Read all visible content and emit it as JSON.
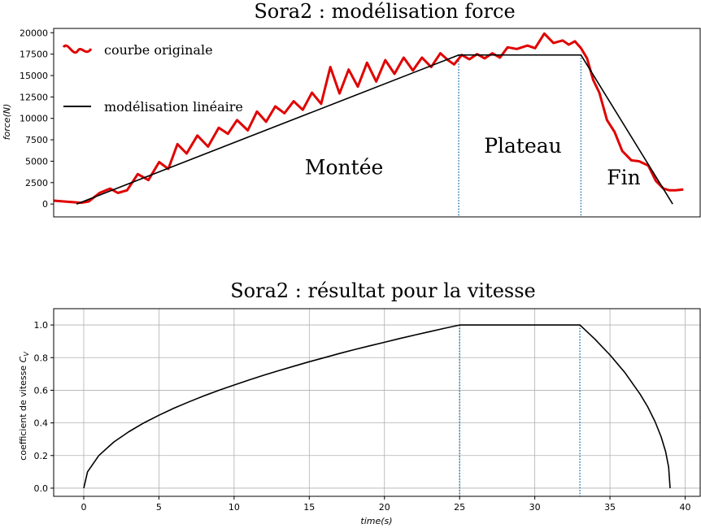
{
  "chart_data": [
    {
      "type": "line",
      "title": "Sora2 : modélisation force",
      "xlabel": "",
      "ylabel": "force(N)",
      "xlim": [
        -1.5,
        40.8
      ],
      "ylim": [
        -1500,
        20500
      ],
      "xticks": [],
      "yticks": [
        0,
        2500,
        5000,
        7500,
        10000,
        12500,
        15000,
        17500,
        20000
      ],
      "ytick_labels": [
        "0",
        "2500",
        "5000",
        "7500",
        "10000",
        "12500",
        "15000",
        "17500",
        "20000"
      ],
      "grid": false,
      "legend_position": "top-left",
      "series": [
        {
          "name": "courbe originale",
          "color": "#e00000",
          "x": [
            -1.5,
            -0.5,
            0.3,
            0.8,
            1.5,
            2.2,
            2.7,
            3.3,
            4.0,
            4.7,
            5.4,
            6.0,
            6.6,
            7.2,
            7.9,
            8.6,
            9.3,
            9.9,
            10.5,
            11.2,
            11.8,
            12.4,
            13.0,
            13.6,
            14.2,
            14.8,
            15.4,
            16.0,
            16.6,
            17.2,
            17.8,
            18.4,
            19.0,
            19.6,
            20.2,
            20.8,
            21.4,
            22.0,
            22.6,
            23.2,
            23.8,
            24.3,
            24.7,
            25.2,
            25.7,
            26.2,
            26.7,
            27.2,
            27.7,
            28.2,
            28.8,
            29.5,
            30.0,
            30.6,
            31.2,
            31.8,
            32.2,
            32.6,
            33.0,
            33.4,
            33.8,
            34.2,
            34.7,
            35.2,
            35.7,
            36.3,
            36.8,
            37.4,
            37.9,
            38.4,
            38.8,
            39.2,
            39.7
          ],
          "values": [
            400,
            250,
            150,
            300,
            1300,
            1800,
            1300,
            1600,
            3500,
            2800,
            4900,
            4100,
            7000,
            5900,
            8000,
            6700,
            8900,
            8200,
            9800,
            8600,
            10800,
            9600,
            11400,
            10600,
            12000,
            11000,
            13000,
            11700,
            16000,
            12900,
            15700,
            13700,
            16500,
            14300,
            16800,
            15200,
            17100,
            15600,
            17100,
            16000,
            17600,
            16800,
            16300,
            17400,
            16900,
            17500,
            17000,
            17600,
            17100,
            18300,
            18100,
            18500,
            18200,
            19900,
            18800,
            19100,
            18600,
            19000,
            18200,
            17000,
            14500,
            13000,
            9800,
            8400,
            6200,
            5100,
            5000,
            4500,
            2700,
            1800,
            1600,
            1600,
            1700
          ]
        },
        {
          "name": "modélisation linéaire",
          "color": "#000000",
          "x": [
            0,
            25,
            33,
            39
          ],
          "values": [
            0,
            17400,
            17400,
            0
          ]
        }
      ],
      "vlines": [
        25,
        33
      ],
      "annotations": [
        {
          "text": "Montée",
          "x": 17.5,
          "y": 3500
        },
        {
          "text": "Plateau",
          "x": 29.2,
          "y": 6000
        },
        {
          "text": "Fin",
          "x": 35.8,
          "y": 2300
        }
      ]
    },
    {
      "type": "line",
      "title": "Sora2 : résultat pour la vitesse",
      "xlabel": "time(s)",
      "ylabel": "coefficient de vitesse C_V",
      "ylabel_main": "coefficient de vitesse ",
      "ylabel_sub": "V",
      "xlim": [
        -2.0,
        41.0
      ],
      "ylim": [
        -0.05,
        1.1
      ],
      "xticks": [
        0,
        5,
        10,
        15,
        20,
        25,
        30,
        35,
        40
      ],
      "xtick_labels": [
        "0",
        "5",
        "10",
        "15",
        "20",
        "25",
        "30",
        "35",
        "40"
      ],
      "yticks": [
        0.0,
        0.2,
        0.4,
        0.6,
        0.8,
        1.0
      ],
      "ytick_labels": [
        "0.0",
        "0.2",
        "0.4",
        "0.6",
        "0.8",
        "1.0"
      ],
      "grid": true,
      "series": [
        {
          "name": "",
          "color": "#000000",
          "x": [
            0,
            0.25,
            1,
            2,
            3,
            4,
            5,
            6,
            7,
            8,
            9,
            10,
            11,
            12,
            13,
            14,
            15,
            16,
            17,
            18,
            19,
            20,
            21,
            22,
            23,
            24,
            25,
            33,
            34,
            35,
            36,
            37,
            37.5,
            38,
            38.4,
            38.7,
            38.9,
            39.0
          ],
          "values": [
            0,
            0.1,
            0.2,
            0.283,
            0.346,
            0.4,
            0.447,
            0.49,
            0.529,
            0.566,
            0.6,
            0.632,
            0.663,
            0.693,
            0.721,
            0.748,
            0.775,
            0.8,
            0.825,
            0.849,
            0.872,
            0.894,
            0.917,
            0.938,
            0.959,
            0.98,
            1.0,
            1.0,
            0.913,
            0.816,
            0.707,
            0.577,
            0.5,
            0.408,
            0.316,
            0.224,
            0.129,
            0.0
          ]
        }
      ],
      "vlines": [
        25,
        33
      ]
    }
  ]
}
